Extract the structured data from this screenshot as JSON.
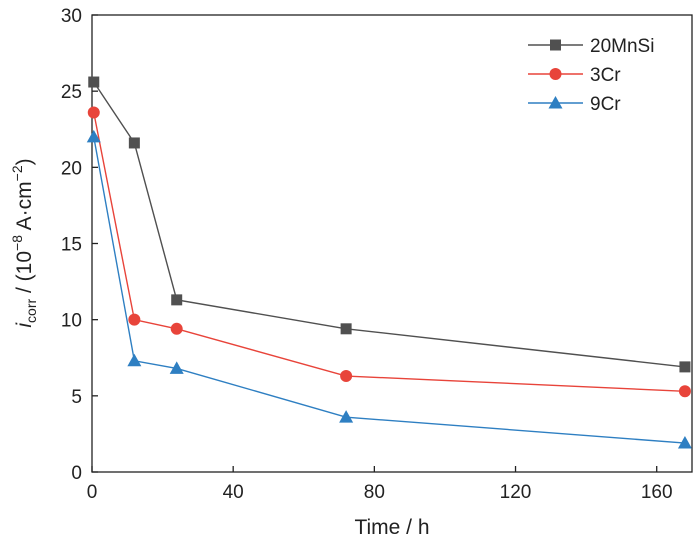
{
  "chart_data": {
    "type": "line",
    "xlabel": "Time / h",
    "ylabel": {
      "italic": "i",
      "subscript": "corr",
      "rest": " / (10",
      "exponent": "−8",
      "unit": " A·cm",
      "unit_exponent": "−2",
      "close": ")"
    },
    "xlim": [
      0,
      170
    ],
    "ylim": [
      0,
      30
    ],
    "xticks": [
      0,
      40,
      80,
      120,
      160
    ],
    "yticks": [
      0,
      5,
      10,
      15,
      20,
      25,
      30
    ],
    "grid": false,
    "legend_position": "top-right",
    "series": [
      {
        "name": "20MnSi",
        "color": "#505050",
        "marker": "square",
        "x": [
          0.5,
          12,
          24,
          72,
          168
        ],
        "y": [
          25.6,
          21.6,
          11.3,
          9.4,
          6.9
        ]
      },
      {
        "name": "3Cr",
        "color": "#e8443a",
        "marker": "circle",
        "x": [
          0.5,
          12,
          24,
          72,
          168
        ],
        "y": [
          23.6,
          10.0,
          9.4,
          6.3,
          5.3
        ]
      },
      {
        "name": "9Cr",
        "color": "#2e7fc2",
        "marker": "triangle",
        "x": [
          0.5,
          12,
          24,
          72,
          168
        ],
        "y": [
          22.0,
          7.3,
          6.8,
          3.6,
          1.9
        ]
      }
    ]
  }
}
